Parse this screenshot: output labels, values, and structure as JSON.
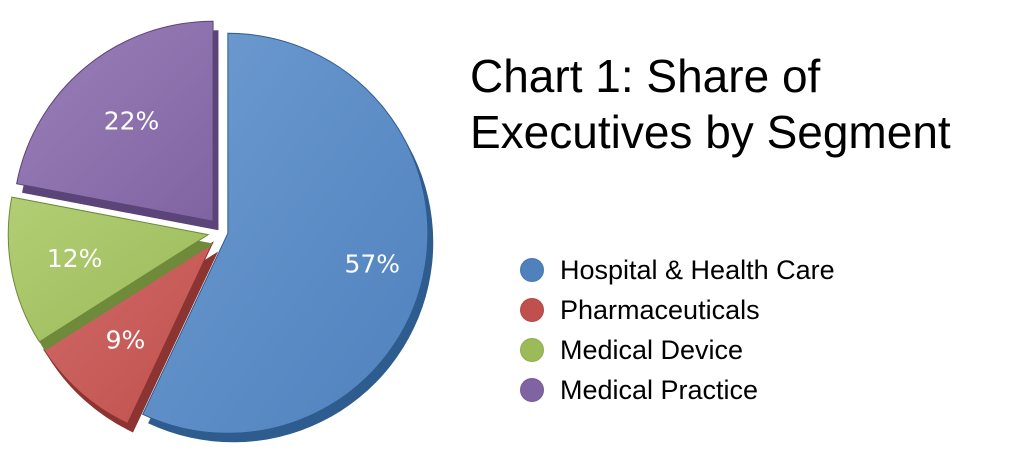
{
  "chart_data": {
    "type": "pie",
    "title": "Chart 1: Share of Executives by Segment",
    "title_lines": [
      "Chart 1: Share of",
      "Executives by Segment"
    ],
    "legend_position": "right",
    "slices": [
      {
        "name": "Hospital & Health Care",
        "value": 57,
        "label": "57%",
        "color": "#4F81BD",
        "dark": "#2E5C8E",
        "light": "#6E9BD1"
      },
      {
        "name": "Pharmaceuticals",
        "value": 9,
        "label": "9%",
        "color": "#C0504D",
        "dark": "#8C3431",
        "light": "#D06A67"
      },
      {
        "name": "Medical Device",
        "value": 12,
        "label": "12%",
        "color": "#9BBB59",
        "dark": "#6E8A3A",
        "light": "#B2CE75"
      },
      {
        "name": "Medical Practice",
        "value": 22,
        "label": "22%",
        "color": "#8064A2",
        "dark": "#5A4478",
        "light": "#9A80BA"
      }
    ]
  }
}
